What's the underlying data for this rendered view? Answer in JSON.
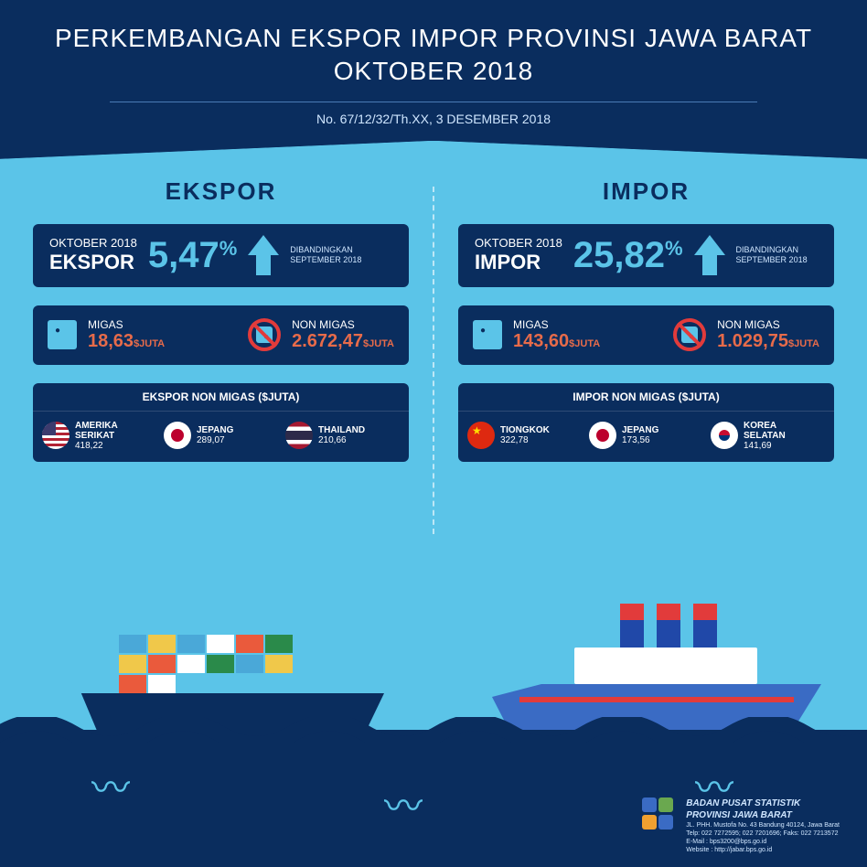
{
  "header": {
    "title_l1": "PERKEMBANGAN EKSPOR IMPOR PROVINSI JAWA BARAT",
    "title_l2": "OKTOBER 2018",
    "subtitle": "No. 67/12/32/Th.XX, 3 DESEMBER 2018"
  },
  "ekspor": {
    "col_title": "EKSPOR",
    "period": "OKTOBER 2018",
    "label": "EKSPOR",
    "pct": "5,47",
    "cmp1": "DIBANDINGKAN",
    "cmp2": "SEPTEMBER 2018",
    "migas_label": "MIGAS",
    "migas_val": "18,63",
    "migas_unit": "$JUTA",
    "nonmigas_label": "NON MIGAS",
    "nonmigas_val": "2.672,47",
    "nonmigas_unit": "$JUTA",
    "box3_title": "EKSPOR NON MIGAS ($JUTA)",
    "countries": [
      {
        "name_l1": "AMERIKA",
        "name_l2": "SERIKAT",
        "val": "418,22",
        "flag": "us"
      },
      {
        "name_l1": "JEPANG",
        "name_l2": "",
        "val": "289,07",
        "flag": "jp"
      },
      {
        "name_l1": "THAILAND",
        "name_l2": "",
        "val": "210,66",
        "flag": "th"
      }
    ]
  },
  "impor": {
    "col_title": "IMPOR",
    "period": "OKTOBER 2018",
    "label": "IMPOR",
    "pct": "25,82",
    "cmp1": "DIBANDINGKAN",
    "cmp2": "SEPTEMBER 2018",
    "migas_label": "MIGAS",
    "migas_val": "143,60",
    "migas_unit": "$JUTA",
    "nonmigas_label": "NON MIGAS",
    "nonmigas_val": "1.029,75",
    "nonmigas_unit": "$JUTA",
    "box3_title": "IMPOR NON MIGAS ($JUTA)",
    "countries": [
      {
        "name_l1": "TIONGKOK",
        "name_l2": "",
        "val": "322,78",
        "flag": "cn"
      },
      {
        "name_l1": "JEPANG",
        "name_l2": "",
        "val": "173,56",
        "flag": "jp"
      },
      {
        "name_l1": "KOREA",
        "name_l2": "SELATAN",
        "val": "141,69",
        "flag": "kr"
      }
    ]
  },
  "containers": [
    "#4aa8d8",
    "#f0c84a",
    "#4aa8d8",
    "#ffffff",
    "#ea5a3c",
    "#2a8a4a",
    "#f0c84a",
    "#ea5a3c",
    "#ffffff",
    "#2a8a4a",
    "#4aa8d8",
    "#f0c84a",
    "#ea5a3c",
    "#ffffff"
  ],
  "footer": {
    "org_l1": "BADAN PUSAT STATISTIK",
    "org_l2": "PROVINSI JAWA BARAT",
    "addr": "JL. PHH. Mustofa No. 43 Bandung 40124, Jawa Barat",
    "tel": "Telp: 022 7272595; 022 7201696; Faks: 022 7213572",
    "email": "E-Mail : bps3200@bps.go.id",
    "web": "Website : http://jabar.bps.go.id",
    "logo_colors": [
      "#3a6bc4",
      "#6aa84f",
      "#f0a030",
      "#3a6bc4"
    ]
  }
}
